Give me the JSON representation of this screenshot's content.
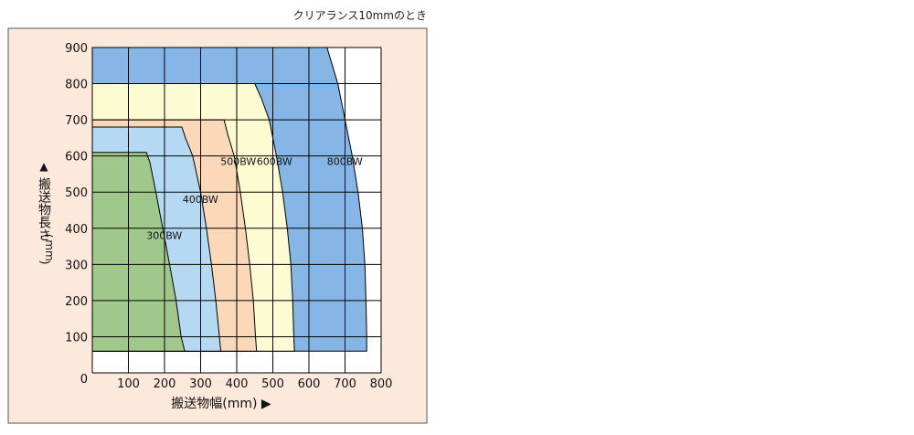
{
  "chart_data": {
    "type": "area",
    "caption": "クリアランス10mmのとき",
    "xlabel": "搬送物幅(mm) ▶",
    "ylabel_arrow": "▲",
    "ylabel": "搬送物長さ",
    "ylabel_paren_open": "(",
    "ylabel_unit": "mm",
    "ylabel_paren_close": ")",
    "xlim": [
      0,
      800
    ],
    "ylim": [
      0,
      900
    ],
    "x_ticks": [
      0,
      100,
      200,
      300,
      400,
      500,
      600,
      700,
      800
    ],
    "y_ticks": [
      100,
      200,
      300,
      400,
      500,
      600,
      700,
      800,
      900
    ],
    "x_tick_labels": [
      "0",
      "100",
      "200",
      "300",
      "400",
      "500",
      "600",
      "700",
      "800"
    ],
    "y_tick_labels": [
      "100",
      "200",
      "300",
      "400",
      "500",
      "600",
      "700",
      "800",
      "900"
    ],
    "y_origin_label": "0",
    "grid": true,
    "series": [
      {
        "name": "800BW",
        "color": "#86b6e6",
        "y_min": 60,
        "boundary": [
          [
            0,
            900
          ],
          [
            650,
            900
          ],
          [
            662,
            860
          ],
          [
            680,
            800
          ],
          [
            700,
            700
          ],
          [
            720,
            600
          ],
          [
            736,
            500
          ],
          [
            748,
            400
          ],
          [
            755,
            300
          ],
          [
            758,
            200
          ],
          [
            760,
            100
          ],
          [
            760,
            60
          ]
        ],
        "label_at": [
          650,
          575
        ]
      },
      {
        "name": "600BW",
        "color": "#fdfbd2",
        "y_min": 60,
        "boundary": [
          [
            0,
            800
          ],
          [
            450,
            800
          ],
          [
            468,
            760
          ],
          [
            490,
            700
          ],
          [
            510,
            600
          ],
          [
            527,
            500
          ],
          [
            540,
            400
          ],
          [
            550,
            300
          ],
          [
            555,
            200
          ],
          [
            558,
            100
          ],
          [
            560,
            60
          ]
        ],
        "label_at": [
          455,
          575
        ]
      },
      {
        "name": "500BW",
        "color": "#fad8b8",
        "y_min": 60,
        "boundary": [
          [
            0,
            700
          ],
          [
            365,
            700
          ],
          [
            375,
            660
          ],
          [
            393,
            600
          ],
          [
            410,
            500
          ],
          [
            424,
            400
          ],
          [
            436,
            300
          ],
          [
            446,
            200
          ],
          [
            452,
            100
          ],
          [
            455,
            60
          ]
        ],
        "label_at": [
          355,
          575
        ]
      },
      {
        "name": "400BW",
        "color": "#b5d9f2",
        "y_min": 60,
        "boundary": [
          [
            0,
            680
          ],
          [
            248,
            680
          ],
          [
            258,
            650
          ],
          [
            278,
            600
          ],
          [
            300,
            500
          ],
          [
            316,
            400
          ],
          [
            330,
            300
          ],
          [
            342,
            200
          ],
          [
            352,
            100
          ],
          [
            356,
            60
          ]
        ],
        "label_at": [
          250,
          470
        ]
      },
      {
        "name": "300BW",
        "color": "#9fc88a",
        "y_min": 60,
        "boundary": [
          [
            0,
            610
          ],
          [
            150,
            610
          ],
          [
            160,
            580
          ],
          [
            176,
            500
          ],
          [
            195,
            400
          ],
          [
            214,
            300
          ],
          [
            232,
            200
          ],
          [
            246,
            100
          ],
          [
            256,
            60
          ]
        ],
        "label_at": [
          150,
          370
        ]
      }
    ],
    "frame_color": "#fde9dc"
  }
}
